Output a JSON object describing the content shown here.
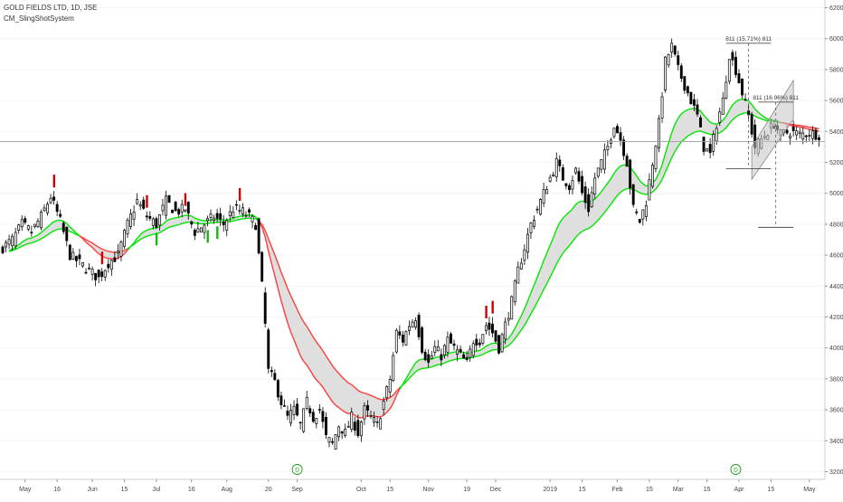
{
  "legend": {
    "symbol_line": "GOLD FIELDS LTD, 1D, JSE",
    "indicator_line": "CM_SlingShotSystem"
  },
  "colors": {
    "candle_body": "#000000",
    "ema_up": "#00e600",
    "ema_down": "#ff3b3b",
    "ribbon_fill": "#d9d9d9",
    "signal_long": "#18b418",
    "signal_short": "#d00000",
    "channel_fill": "#c4c4c4",
    "hline": "#9e9e9e",
    "axis_text": "#444444",
    "earnings_marker": "#18a018"
  },
  "chart_data": {
    "type": "candlestick",
    "ylim": [
      3150,
      6250
    ],
    "y_ticks": [
      3200,
      3400,
      3600,
      3800,
      4000,
      4200,
      4400,
      4600,
      4800,
      5000,
      5200,
      5400,
      5600,
      5800,
      6000,
      6200
    ],
    "y_tick_labels": [
      "3200",
      "3400",
      "3600",
      "3800",
      "4000",
      "4200",
      "4400",
      "4600",
      "4800",
      "5000",
      "5200",
      "5400",
      "5600",
      "5800",
      "6000",
      "6200"
    ],
    "x_axis_labels": [
      {
        "label": "May",
        "index": 7
      },
      {
        "label": "16",
        "index": 17
      },
      {
        "label": "Jun",
        "index": 28
      },
      {
        "label": "15",
        "index": 38
      },
      {
        "label": "Jul",
        "index": 48
      },
      {
        "label": "16",
        "index": 59
      },
      {
        "label": "Aug",
        "index": 70
      },
      {
        "label": "20",
        "index": 83
      },
      {
        "label": "Sep",
        "index": 92
      },
      {
        "label": "Oct",
        "index": 112
      },
      {
        "label": "15",
        "index": 121
      },
      {
        "label": "Nov",
        "index": 133
      },
      {
        "label": "19",
        "index": 145
      },
      {
        "label": "Dec",
        "index": 154
      },
      {
        "label": "2019",
        "index": 171
      },
      {
        "label": "15",
        "index": 181
      },
      {
        "label": "Feb",
        "index": 192
      },
      {
        "label": "15",
        "index": 202
      },
      {
        "label": "Mar",
        "index": 211
      },
      {
        "label": "15",
        "index": 220
      },
      {
        "label": "Apr",
        "index": 230
      },
      {
        "label": "15",
        "index": 240
      },
      {
        "label": "May",
        "index": 252
      }
    ],
    "bar_count": 256,
    "close_anchors": [
      [
        0,
        4650
      ],
      [
        3,
        4700
      ],
      [
        6,
        4800
      ],
      [
        9,
        4750
      ],
      [
        12,
        4850
      ],
      [
        15,
        4980
      ],
      [
        18,
        4820
      ],
      [
        21,
        4600
      ],
      [
        24,
        4550
      ],
      [
        27,
        4500
      ],
      [
        30,
        4450
      ],
      [
        33,
        4550
      ],
      [
        36,
        4600
      ],
      [
        39,
        4800
      ],
      [
        42,
        4950
      ],
      [
        45,
        4850
      ],
      [
        48,
        4800
      ],
      [
        51,
        4950
      ],
      [
        54,
        4880
      ],
      [
        57,
        4900
      ],
      [
        60,
        4750
      ],
      [
        63,
        4800
      ],
      [
        66,
        4850
      ],
      [
        69,
        4800
      ],
      [
        72,
        4900
      ],
      [
        75,
        4880
      ],
      [
        77,
        4850
      ],
      [
        79,
        4800
      ],
      [
        81,
        4400
      ],
      [
        82,
        4150
      ],
      [
        83,
        3850
      ],
      [
        85,
        3780
      ],
      [
        87,
        3650
      ],
      [
        89,
        3550
      ],
      [
        91,
        3600
      ],
      [
        93,
        3500
      ],
      [
        95,
        3650
      ],
      [
        97,
        3550
      ],
      [
        99,
        3600
      ],
      [
        101,
        3420
      ],
      [
        103,
        3380
      ],
      [
        105,
        3500
      ],
      [
        107,
        3450
      ],
      [
        109,
        3550
      ],
      [
        111,
        3450
      ],
      [
        113,
        3600
      ],
      [
        115,
        3550
      ],
      [
        117,
        3500
      ],
      [
        119,
        3650
      ],
      [
        121,
        3800
      ],
      [
        123,
        4100
      ],
      [
        125,
        4050
      ],
      [
        127,
        4150
      ],
      [
        129,
        4200
      ],
      [
        131,
        4000
      ],
      [
        133,
        3900
      ],
      [
        135,
        4000
      ],
      [
        137,
        3950
      ],
      [
        139,
        4050
      ],
      [
        141,
        4000
      ],
      [
        143,
        3950
      ],
      [
        145,
        3900
      ],
      [
        147,
        4050
      ],
      [
        149,
        4050
      ],
      [
        151,
        4150
      ],
      [
        153,
        4100
      ],
      [
        155,
        4000
      ],
      [
        157,
        4150
      ],
      [
        159,
        4300
      ],
      [
        161,
        4500
      ],
      [
        163,
        4650
      ],
      [
        165,
        4800
      ],
      [
        167,
        4900
      ],
      [
        169,
        5000
      ],
      [
        171,
        5100
      ],
      [
        173,
        5200
      ],
      [
        175,
        5100
      ],
      [
        177,
        5050
      ],
      [
        179,
        5150
      ],
      [
        181,
        5000
      ],
      [
        183,
        4900
      ],
      [
        185,
        5100
      ],
      [
        187,
        5200
      ],
      [
        189,
        5300
      ],
      [
        191,
        5450
      ],
      [
        193,
        5350
      ],
      [
        195,
        5200
      ],
      [
        197,
        4900
      ],
      [
        199,
        4820
      ],
      [
        201,
        4950
      ],
      [
        203,
        5200
      ],
      [
        205,
        5450
      ],
      [
        207,
        5850
      ],
      [
        209,
        5950
      ],
      [
        211,
        5800
      ],
      [
        213,
        5700
      ],
      [
        215,
        5600
      ],
      [
        217,
        5500
      ],
      [
        219,
        5300
      ],
      [
        221,
        5250
      ],
      [
        223,
        5450
      ],
      [
        225,
        5600
      ],
      [
        227,
        5900
      ],
      [
        229,
        5800
      ],
      [
        231,
        5650
      ],
      [
        233,
        5500
      ],
      [
        235,
        5300
      ],
      [
        237,
        5350
      ],
      [
        239,
        5400
      ],
      [
        241,
        5450
      ],
      [
        243,
        5380
      ],
      [
        246,
        5400
      ],
      [
        249,
        5380
      ],
      [
        252,
        5390
      ],
      [
        255,
        5380
      ]
    ],
    "signals": {
      "short_bars": [
        16,
        31,
        45,
        57,
        74,
        151,
        153
      ],
      "long_bars": [
        48,
        64,
        67
      ]
    },
    "earnings_markers": [
      {
        "label": "D",
        "index": 92
      },
      {
        "label": "D",
        "index": 229
      }
    ],
    "measure_top": {
      "label": "811 (15.71%) 811",
      "x0_index": 226,
      "x1_index": 240,
      "y_high": 5970,
      "y_low": 5160
    },
    "measure_mid": {
      "label": "811 (16.96%) 811",
      "x0_index": 236,
      "x1_index": 247,
      "y_high": 5590,
      "y_low": 4780
    },
    "channel": {
      "x0_index": 234,
      "x1_index": 247,
      "upper_start": 5300,
      "upper_end": 5730,
      "lower_start": 5090,
      "lower_end": 5480
    },
    "horizontal_line": 5335
  }
}
